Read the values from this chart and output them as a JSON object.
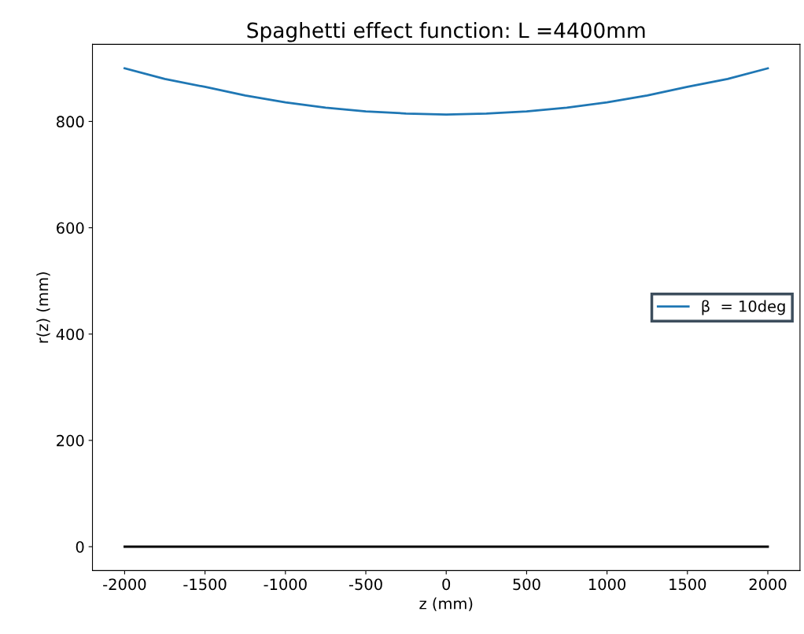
{
  "chart_data": {
    "type": "line",
    "title": "Spaghetti effect function: L =4400mm",
    "xlabel": "z (mm)",
    "ylabel": "r(z) (mm)",
    "series": [
      {
        "name": "β  = 10deg",
        "color": "#1f77b4",
        "x": [
          -2000,
          -1750,
          -1500,
          -1250,
          -1000,
          -750,
          -500,
          -250,
          0,
          250,
          500,
          750,
          1000,
          1250,
          1500,
          1750,
          2000
        ],
        "values": [
          900,
          880,
          865,
          849,
          836,
          826,
          819,
          815,
          813,
          815,
          819,
          826,
          836,
          849,
          865,
          880,
          900
        ]
      },
      {
        "color": "#000000",
        "x": [
          -2000,
          2000
        ],
        "values": [
          0,
          0
        ]
      }
    ],
    "xlim": [
      -2200,
      2200
    ],
    "ylim": [
      -45,
      945
    ],
    "xticks": [
      -2000,
      -1500,
      -1000,
      -500,
      0,
      500,
      1000,
      1500,
      2000
    ],
    "yticks": [
      0,
      200,
      400,
      600,
      800
    ],
    "legend": "center right",
    "grid": false
  }
}
